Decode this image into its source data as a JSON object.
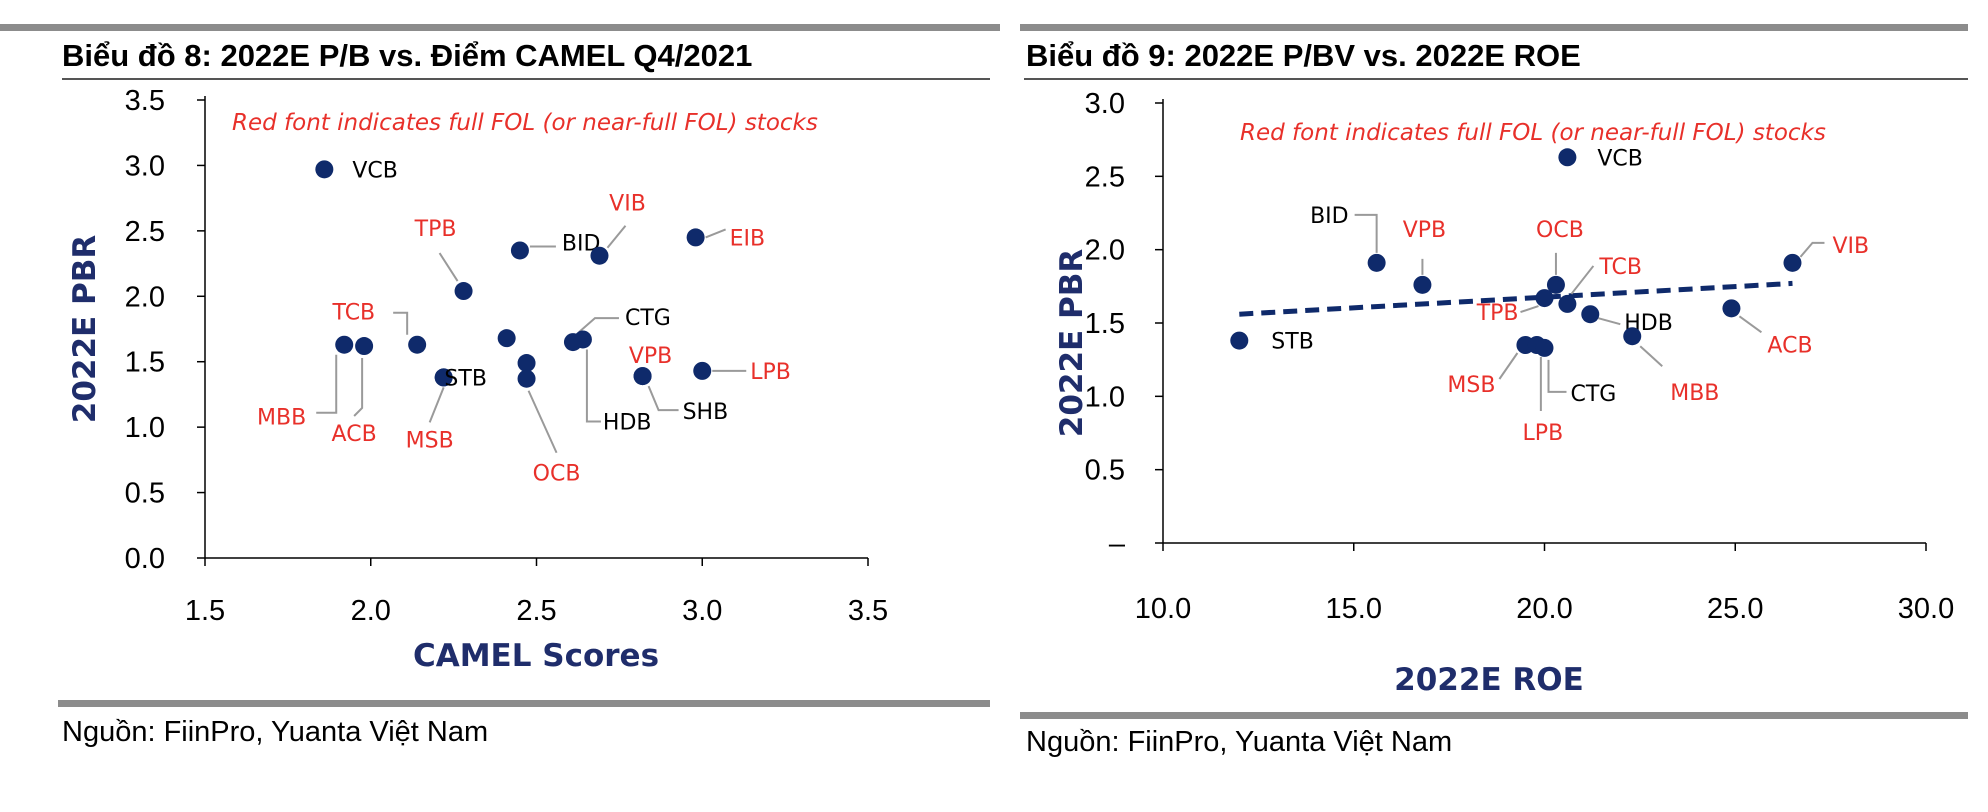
{
  "colors": {
    "dot": "#0f2a6b",
    "red": "#e8302a",
    "black": "#000000",
    "axis_title": "#1f2d6b",
    "leader": "#9a9a9a"
  },
  "left": {
    "title": "Biểu đồ 8:  2022E P/B vs. Điểm CAMEL Q4/2021",
    "source": "Nguồn: FiinPro, Yuanta Việt Nam"
  },
  "right": {
    "title": "Biểu đồ 9:  2022E P/BV vs. 2022E ROE",
    "source": "Nguồn: FiinPro, Yuanta Việt Nam"
  },
  "chart_data": [
    {
      "type": "scatter",
      "title": "Biểu đồ 8:  2022E P/B vs. Điểm CAMEL Q4/2021",
      "xlabel": "CAMEL Scores",
      "ylabel": "2022E PBR",
      "xlim": [
        1.5,
        3.5
      ],
      "ylim": [
        0.0,
        3.5
      ],
      "xticks": [
        "1.5",
        "2.0",
        "2.5",
        "3.0",
        "3.5"
      ],
      "yticks": [
        "0.0",
        "0.5",
        "1.0",
        "1.5",
        "2.0",
        "2.5",
        "3.0",
        "3.5"
      ],
      "annotation": "Red font indicates full FOL (or near-full FOL) stocks",
      "points": [
        {
          "name": "VCB",
          "x": 1.86,
          "y": 2.97,
          "red": false
        },
        {
          "name": "MBB",
          "x": 1.92,
          "y": 1.63,
          "red": true
        },
        {
          "name": "ACB",
          "x": 1.98,
          "y": 1.62,
          "red": true
        },
        {
          "name": "TCB",
          "x": 2.14,
          "y": 1.63,
          "red": true
        },
        {
          "name": "MSB",
          "x": 2.22,
          "y": 1.38,
          "red": true
        },
        {
          "name": "STB",
          "x": 2.22,
          "y": 1.38,
          "red": false
        },
        {
          "name": "TPB",
          "x": 2.28,
          "y": 2.04,
          "red": true
        },
        {
          "name": "",
          "x": 2.41,
          "y": 1.68,
          "red": false
        },
        {
          "name": "BID",
          "x": 2.45,
          "y": 2.35,
          "red": false
        },
        {
          "name": "",
          "x": 2.47,
          "y": 1.49,
          "red": false
        },
        {
          "name": "OCB",
          "x": 2.47,
          "y": 1.37,
          "red": true
        },
        {
          "name": "CTG",
          "x": 2.61,
          "y": 1.65,
          "red": false
        },
        {
          "name": "HDB",
          "x": 2.64,
          "y": 1.67,
          "red": false
        },
        {
          "name": "VIB",
          "x": 2.69,
          "y": 2.31,
          "red": true
        },
        {
          "name": "SHB",
          "x": 2.82,
          "y": 1.39,
          "red": false
        },
        {
          "name": "VPB",
          "x": 2.82,
          "y": 1.39,
          "red": true
        },
        {
          "name": "EIB",
          "x": 2.98,
          "y": 2.45,
          "red": true
        },
        {
          "name": "LPB",
          "x": 3.0,
          "y": 1.43,
          "red": true
        }
      ]
    },
    {
      "type": "scatter",
      "title": "Biểu đồ 9:  2022E P/BV vs. 2022E ROE",
      "xlabel": "2022E ROE",
      "ylabel": "2022E PBR",
      "xlim": [
        10.0,
        30.0
      ],
      "ylim": [
        0.0,
        3.0
      ],
      "xticks": [
        "10.0",
        "15.0",
        "20.0",
        "25.0",
        "30.0"
      ],
      "yticks": [
        "–",
        "0.5",
        "1.0",
        "1.5",
        "2.0",
        "2.5",
        "3.0"
      ],
      "annotation": "Red font indicates full FOL (or near-full FOL) stocks",
      "trendline": {
        "x": [
          12.0,
          26.5
        ],
        "y": [
          1.56,
          1.77
        ]
      },
      "points": [
        {
          "name": "STB",
          "x": 12.0,
          "y": 1.38,
          "red": false
        },
        {
          "name": "BID",
          "x": 15.6,
          "y": 1.91,
          "red": false
        },
        {
          "name": "VPB",
          "x": 16.8,
          "y": 1.76,
          "red": true
        },
        {
          "name": "MSB",
          "x": 19.5,
          "y": 1.35,
          "red": true
        },
        {
          "name": "LPB",
          "x": 19.8,
          "y": 1.35,
          "red": true
        },
        {
          "name": "CTG",
          "x": 20.0,
          "y": 1.33,
          "red": false
        },
        {
          "name": "TPB",
          "x": 20.0,
          "y": 1.67,
          "red": true
        },
        {
          "name": "OCB",
          "x": 20.3,
          "y": 1.76,
          "red": true
        },
        {
          "name": "TCB",
          "x": 20.6,
          "y": 1.63,
          "red": true
        },
        {
          "name": "VCB",
          "x": 20.6,
          "y": 2.63,
          "red": false
        },
        {
          "name": "HDB",
          "x": 21.2,
          "y": 1.56,
          "red": false
        },
        {
          "name": "MBB",
          "x": 22.3,
          "y": 1.41,
          "red": true
        },
        {
          "name": "ACB",
          "x": 24.9,
          "y": 1.6,
          "red": true
        },
        {
          "name": "VIB",
          "x": 26.5,
          "y": 1.91,
          "red": true
        }
      ]
    }
  ]
}
